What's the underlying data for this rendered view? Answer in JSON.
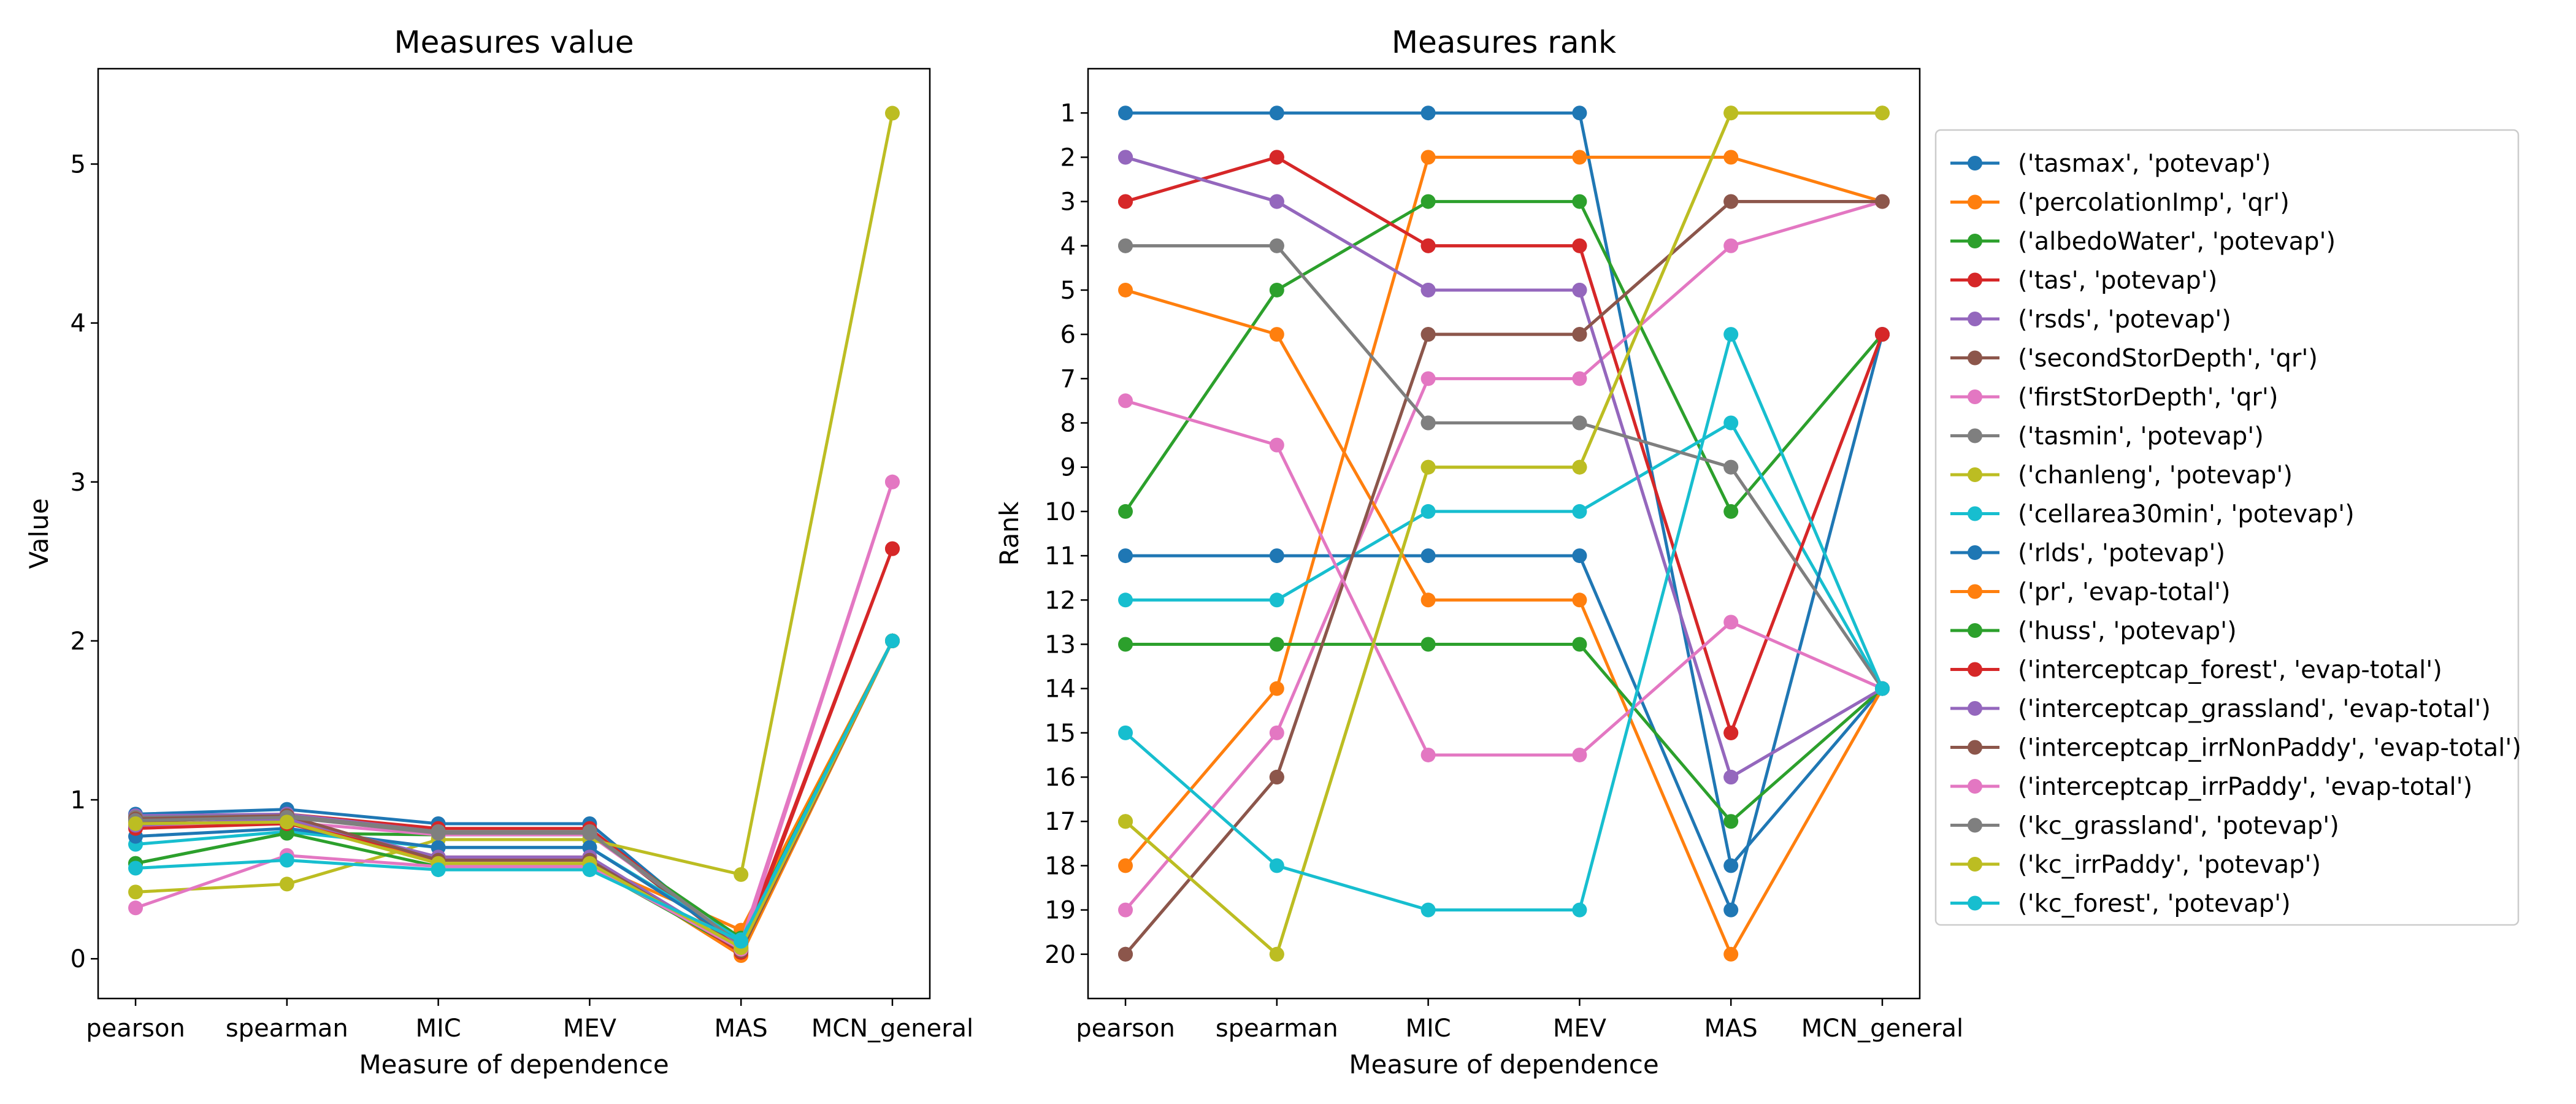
{
  "chart_data": [
    {
      "type": "line",
      "title": "Measures value",
      "xlabel": "Measure of dependence",
      "ylabel": "Value",
      "categories": [
        "pearson",
        "spearman",
        "MIC",
        "MEV",
        "MAS",
        "MCN_general"
      ],
      "ylim": [
        -0.25,
        5.6
      ],
      "yticks": [
        0,
        1,
        2,
        3,
        4,
        5
      ],
      "grid": false,
      "series": [
        {
          "name": "('tasmax', 'potevap')",
          "values": [
            0.91,
            0.94,
            0.85,
            0.85,
            0.06,
            2.0
          ]
        },
        {
          "name": "('percolationImp', 'qr')",
          "values": [
            0.83,
            0.87,
            0.6,
            0.6,
            0.18,
            2.0
          ]
        },
        {
          "name": "('albedoWater', 'potevap')",
          "values": [
            0.6,
            0.79,
            0.78,
            0.78,
            0.13,
            2.0
          ]
        },
        {
          "name": "('tas', 'potevap')",
          "values": [
            0.88,
            0.91,
            0.82,
            0.82,
            0.07,
            2.58
          ]
        },
        {
          "name": "('rsds', 'potevap')",
          "values": [
            0.9,
            0.91,
            0.8,
            0.8,
            0.08,
            2.0
          ]
        },
        {
          "name": "('secondStorDepth', 'qr')",
          "values": [
            0.86,
            0.9,
            0.8,
            0.8,
            0.05,
            2.0
          ]
        },
        {
          "name": "('firstStorDepth', 'qr')",
          "values": [
            0.84,
            0.86,
            0.78,
            0.78,
            0.1,
            3.0
          ]
        },
        {
          "name": "('tasmin', 'potevap')",
          "values": [
            0.89,
            0.9,
            0.8,
            0.8,
            0.09,
            2.0
          ]
        },
        {
          "name": "('chanleng', 'potevap')",
          "values": [
            0.42,
            0.47,
            0.75,
            0.75,
            0.53,
            5.32
          ]
        },
        {
          "name": "('cellarea30min', 'potevap')",
          "values": [
            0.72,
            0.8,
            0.7,
            0.7,
            0.12,
            2.0
          ]
        },
        {
          "name": "('rlds', 'potevap')",
          "values": [
            0.77,
            0.82,
            0.7,
            0.7,
            0.1,
            2.0
          ]
        },
        {
          "name": "('pr', 'evap-total')",
          "values": [
            0.88,
            0.88,
            0.62,
            0.62,
            0.02,
            2.0
          ]
        },
        {
          "name": "('huss', 'potevap')",
          "values": [
            0.6,
            0.79,
            0.58,
            0.58,
            0.05,
            2.0
          ]
        },
        {
          "name": "('interceptcap_forest', 'evap-total')",
          "values": [
            0.82,
            0.85,
            0.64,
            0.64,
            0.04,
            2.58
          ]
        },
        {
          "name": "('interceptcap_grassland', 'evap-total')",
          "values": [
            0.84,
            0.88,
            0.64,
            0.64,
            0.06,
            2.0
          ]
        },
        {
          "name": "('interceptcap_irrNonPaddy', 'evap-total')",
          "values": [
            0.88,
            0.9,
            0.62,
            0.62,
            0.05,
            2.0
          ]
        },
        {
          "name": "('interceptcap_irrPaddy', 'evap-total')",
          "values": [
            0.32,
            0.65,
            0.58,
            0.58,
            0.06,
            3.0
          ]
        },
        {
          "name": "('kc_grassland', 'potevap')",
          "values": [
            0.87,
            0.89,
            0.79,
            0.79,
            0.09,
            2.0
          ]
        },
        {
          "name": "('kc_irrPaddy', 'potevap')",
          "values": [
            0.85,
            0.86,
            0.6,
            0.6,
            0.07,
            2.0
          ]
        },
        {
          "name": "('kc_forest', 'potevap')",
          "values": [
            0.57,
            0.62,
            0.56,
            0.56,
            0.11,
            2.0
          ]
        }
      ]
    },
    {
      "type": "line",
      "title": "Measures rank",
      "xlabel": "Measure of dependence",
      "ylabel": "Rank",
      "categories": [
        "pearson",
        "spearman",
        "MIC",
        "MEV",
        "MAS",
        "MCN_general"
      ],
      "ylim": [
        21,
        0
      ],
      "yticks": [
        1,
        2,
        3,
        4,
        5,
        6,
        7,
        8,
        9,
        10,
        11,
        12,
        13,
        14,
        15,
        16,
        17,
        18,
        19,
        20
      ],
      "grid": false,
      "legend_position": "right",
      "series": [
        {
          "name": "('tasmax', 'potevap')",
          "values": [
            1,
            1,
            1,
            1,
            18,
            14
          ]
        },
        {
          "name": "('percolationImp', 'qr')",
          "values": [
            18,
            14,
            2,
            2,
            2,
            3
          ]
        },
        {
          "name": "('albedoWater', 'potevap')",
          "values": [
            10,
            5,
            3,
            3,
            10,
            6
          ]
        },
        {
          "name": "('tas', 'potevap')",
          "values": [
            3,
            2,
            4,
            4,
            15,
            6
          ]
        },
        {
          "name": "('rsds', 'potevap')",
          "values": [
            2,
            3,
            5,
            5,
            16,
            14
          ]
        },
        {
          "name": "('secondStorDepth', 'qr')",
          "values": [
            20,
            16,
            6,
            6,
            3,
            3
          ]
        },
        {
          "name": "('firstStorDepth', 'qr')",
          "values": [
            19,
            15,
            7,
            7,
            4,
            3
          ]
        },
        {
          "name": "('tasmin', 'potevap')",
          "values": [
            4,
            4,
            8,
            8,
            9,
            14
          ]
        },
        {
          "name": "('chanleng', 'potevap')",
          "values": [
            17,
            20,
            9,
            9,
            1,
            1
          ]
        },
        {
          "name": "('cellarea30min', 'potevap')",
          "values": [
            12,
            12,
            10,
            10,
            8,
            14
          ]
        },
        {
          "name": "('rlds', 'potevap')",
          "values": [
            11,
            11,
            11,
            11,
            19,
            6
          ]
        },
        {
          "name": "('pr', 'evap-total')",
          "values": [
            5,
            6,
            12,
            12,
            20,
            14
          ]
        },
        {
          "name": "('huss', 'potevap')",
          "values": [
            13,
            13,
            13,
            13,
            17,
            14
          ]
        },
        {
          "name": "('interceptcap_forest', 'evap-total')",
          "values": [
            3,
            2,
            4,
            4,
            15,
            6
          ]
        },
        {
          "name": "('interceptcap_grassland', 'evap-total')",
          "values": [
            2,
            3,
            5,
            5,
            16,
            14
          ]
        },
        {
          "name": "('interceptcap_irrNonPaddy', 'evap-total')",
          "values": [
            20,
            16,
            6,
            6,
            3,
            3
          ]
        },
        {
          "name": "('interceptcap_irrPaddy', 'evap-total')",
          "values": [
            7.5,
            8.5,
            15.5,
            15.5,
            12.5,
            14
          ]
        },
        {
          "name": "('kc_grassland', 'potevap')",
          "values": [
            4,
            4,
            8,
            8,
            9,
            14
          ]
        },
        {
          "name": "('kc_irrPaddy', 'potevap')",
          "values": [
            17,
            20,
            9,
            9,
            1,
            1
          ]
        },
        {
          "name": "('kc_forest', 'potevap')",
          "values": [
            15,
            18,
            19,
            19,
            6,
            14
          ]
        }
      ]
    }
  ],
  "colors": [
    "#1f77b4",
    "#ff7f0e",
    "#2ca02c",
    "#d62728",
    "#9467bd",
    "#8c564b",
    "#e377c2",
    "#7f7f7f",
    "#bcbd22",
    "#17becf"
  ]
}
